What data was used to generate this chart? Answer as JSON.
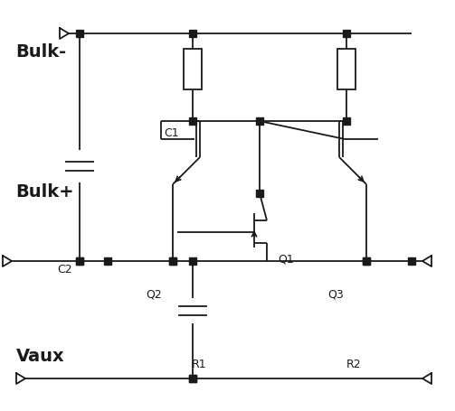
{
  "bg_color": "#ffffff",
  "line_color": "#1a1a1a",
  "line_width": 1.3,
  "dot_size": 5.5,
  "fig_w": 5.03,
  "fig_h": 4.56,
  "dpi": 100,
  "labels": {
    "Vaux": [
      0.035,
      0.845,
      14,
      "bold"
    ],
    "Bulk+": [
      0.035,
      0.445,
      14,
      "bold"
    ],
    "Bulk-": [
      0.035,
      0.105,
      14,
      "bold"
    ],
    "R1": [
      0.42,
      0.87,
      9,
      "normal"
    ],
    "R2": [
      0.76,
      0.87,
      9,
      "normal"
    ],
    "Q2": [
      0.32,
      0.7,
      9,
      "normal"
    ],
    "Q3": [
      0.72,
      0.7,
      9,
      "normal"
    ],
    "Q1": [
      0.61,
      0.615,
      9,
      "normal"
    ],
    "C2": [
      0.125,
      0.64,
      9,
      "normal"
    ],
    "C1": [
      0.36,
      0.31,
      9,
      "normal"
    ]
  }
}
